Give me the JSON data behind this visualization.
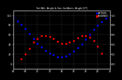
{
  "title_short": "Sol Alti. Angle & Sun Inc/Azim. Angle [LT]",
  "legend_labels": [
    "ALTITUDE",
    "INCIDENCE"
  ],
  "background_color": "#000000",
  "plot_bg_color": "#000000",
  "grid_color": "#444444",
  "ylim": [
    -10,
    110
  ],
  "xlim": [
    0,
    96
  ],
  "altitude_x": [
    0,
    4,
    8,
    12,
    16,
    20,
    24,
    28,
    32,
    36,
    40,
    44,
    48,
    52,
    56,
    60,
    64,
    68,
    72,
    76,
    80,
    84,
    88,
    92,
    96
  ],
  "altitude_y": [
    95,
    88,
    80,
    72,
    62,
    52,
    42,
    35,
    28,
    22,
    18,
    15,
    14,
    16,
    20,
    26,
    33,
    41,
    50,
    60,
    70,
    79,
    87,
    93,
    96
  ],
  "incidence_x": [
    8,
    12,
    16,
    20,
    24,
    28,
    32,
    36,
    40,
    44,
    48,
    52,
    56,
    60,
    64,
    68,
    72,
    76,
    80,
    84,
    88
  ],
  "incidence_y": [
    10,
    20,
    32,
    44,
    52,
    57,
    58,
    56,
    52,
    46,
    42,
    42,
    44,
    48,
    53,
    57,
    58,
    55,
    48,
    36,
    22
  ],
  "xtick_positions": [
    0,
    12,
    24,
    36,
    48,
    60,
    72,
    84,
    96
  ],
  "xtick_labels": [
    "06",
    "08",
    "10",
    "12",
    "14",
    "16",
    "18",
    "20",
    "22"
  ],
  "ytick_positions": [
    0,
    20,
    40,
    60,
    80,
    100
  ],
  "ytick_labels": [
    "0",
    "20",
    "40",
    "60",
    "80",
    "100"
  ],
  "ytick_right_labels": [
    "0.0",
    "0.2",
    "0.4",
    "0.6",
    "0.8",
    "1.0"
  ],
  "dot_size": 4,
  "alt_color": "#0000ff",
  "inc_color": "#ff0000",
  "font_color": "#ffffff",
  "tick_color": "#ffffff",
  "axis_color": "#888888"
}
